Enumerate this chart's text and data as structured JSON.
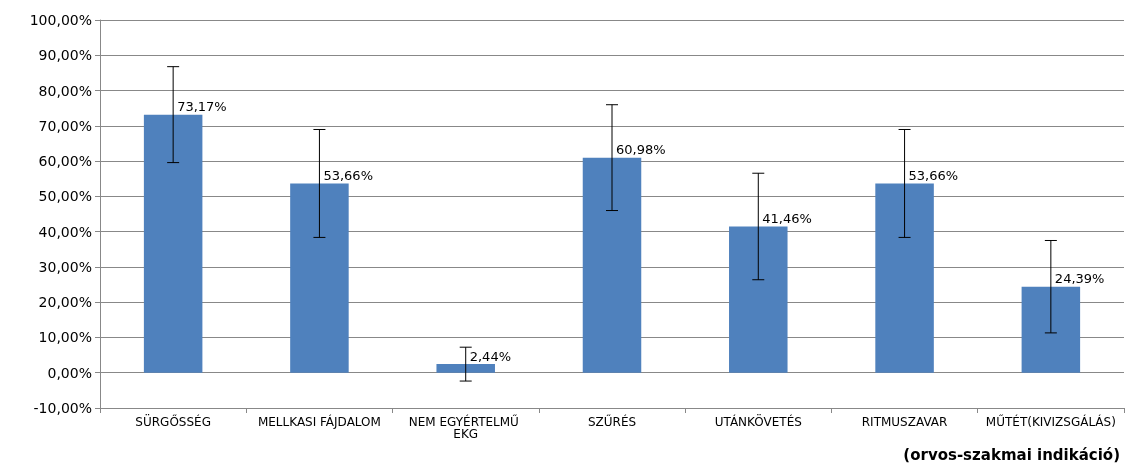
{
  "chart_data": {
    "type": "bar",
    "categories": [
      "SÜRGŐSSÉG",
      "MELLKASI FÁJDALOM",
      "NEM EGYÉRTELMŰ EKG",
      "SZŰRÉS",
      "UTÁNKÖVETÉS",
      "RITMUSZAVAR",
      "MŰTÉT(KIVIZSGÁLÁS)"
    ],
    "values": [
      73.17,
      53.66,
      2.44,
      60.98,
      41.46,
      53.66,
      24.39
    ],
    "errors": [
      13.6,
      15.3,
      4.8,
      15.0,
      15.1,
      15.3,
      13.1
    ],
    "color": "#4f81bd",
    "value_labels": [
      "73,17%",
      "53,66%",
      "2,44%",
      "60,98%",
      "41,46%",
      "53,66%",
      "24,39%"
    ],
    "ylim": [
      -10,
      100
    ],
    "yticks": [
      {
        "value": -10,
        "label": "-10,00%"
      },
      {
        "value": 0,
        "label": "0,00%"
      },
      {
        "value": 10,
        "label": "10,00%"
      },
      {
        "value": 20,
        "label": "20,00%"
      },
      {
        "value": 30,
        "label": "30,00%"
      },
      {
        "value": 40,
        "label": "40,00%"
      },
      {
        "value": 50,
        "label": "50,00%"
      },
      {
        "value": 60,
        "label": "60,00%"
      },
      {
        "value": 70,
        "label": "70,00%"
      },
      {
        "value": 80,
        "label": "80,00%"
      },
      {
        "value": 90,
        "label": "90,00%"
      },
      {
        "value": 100,
        "label": "100,00%"
      }
    ],
    "grid": "y",
    "annotations": [
      "(orvos-szakmai indikáció)"
    ]
  }
}
